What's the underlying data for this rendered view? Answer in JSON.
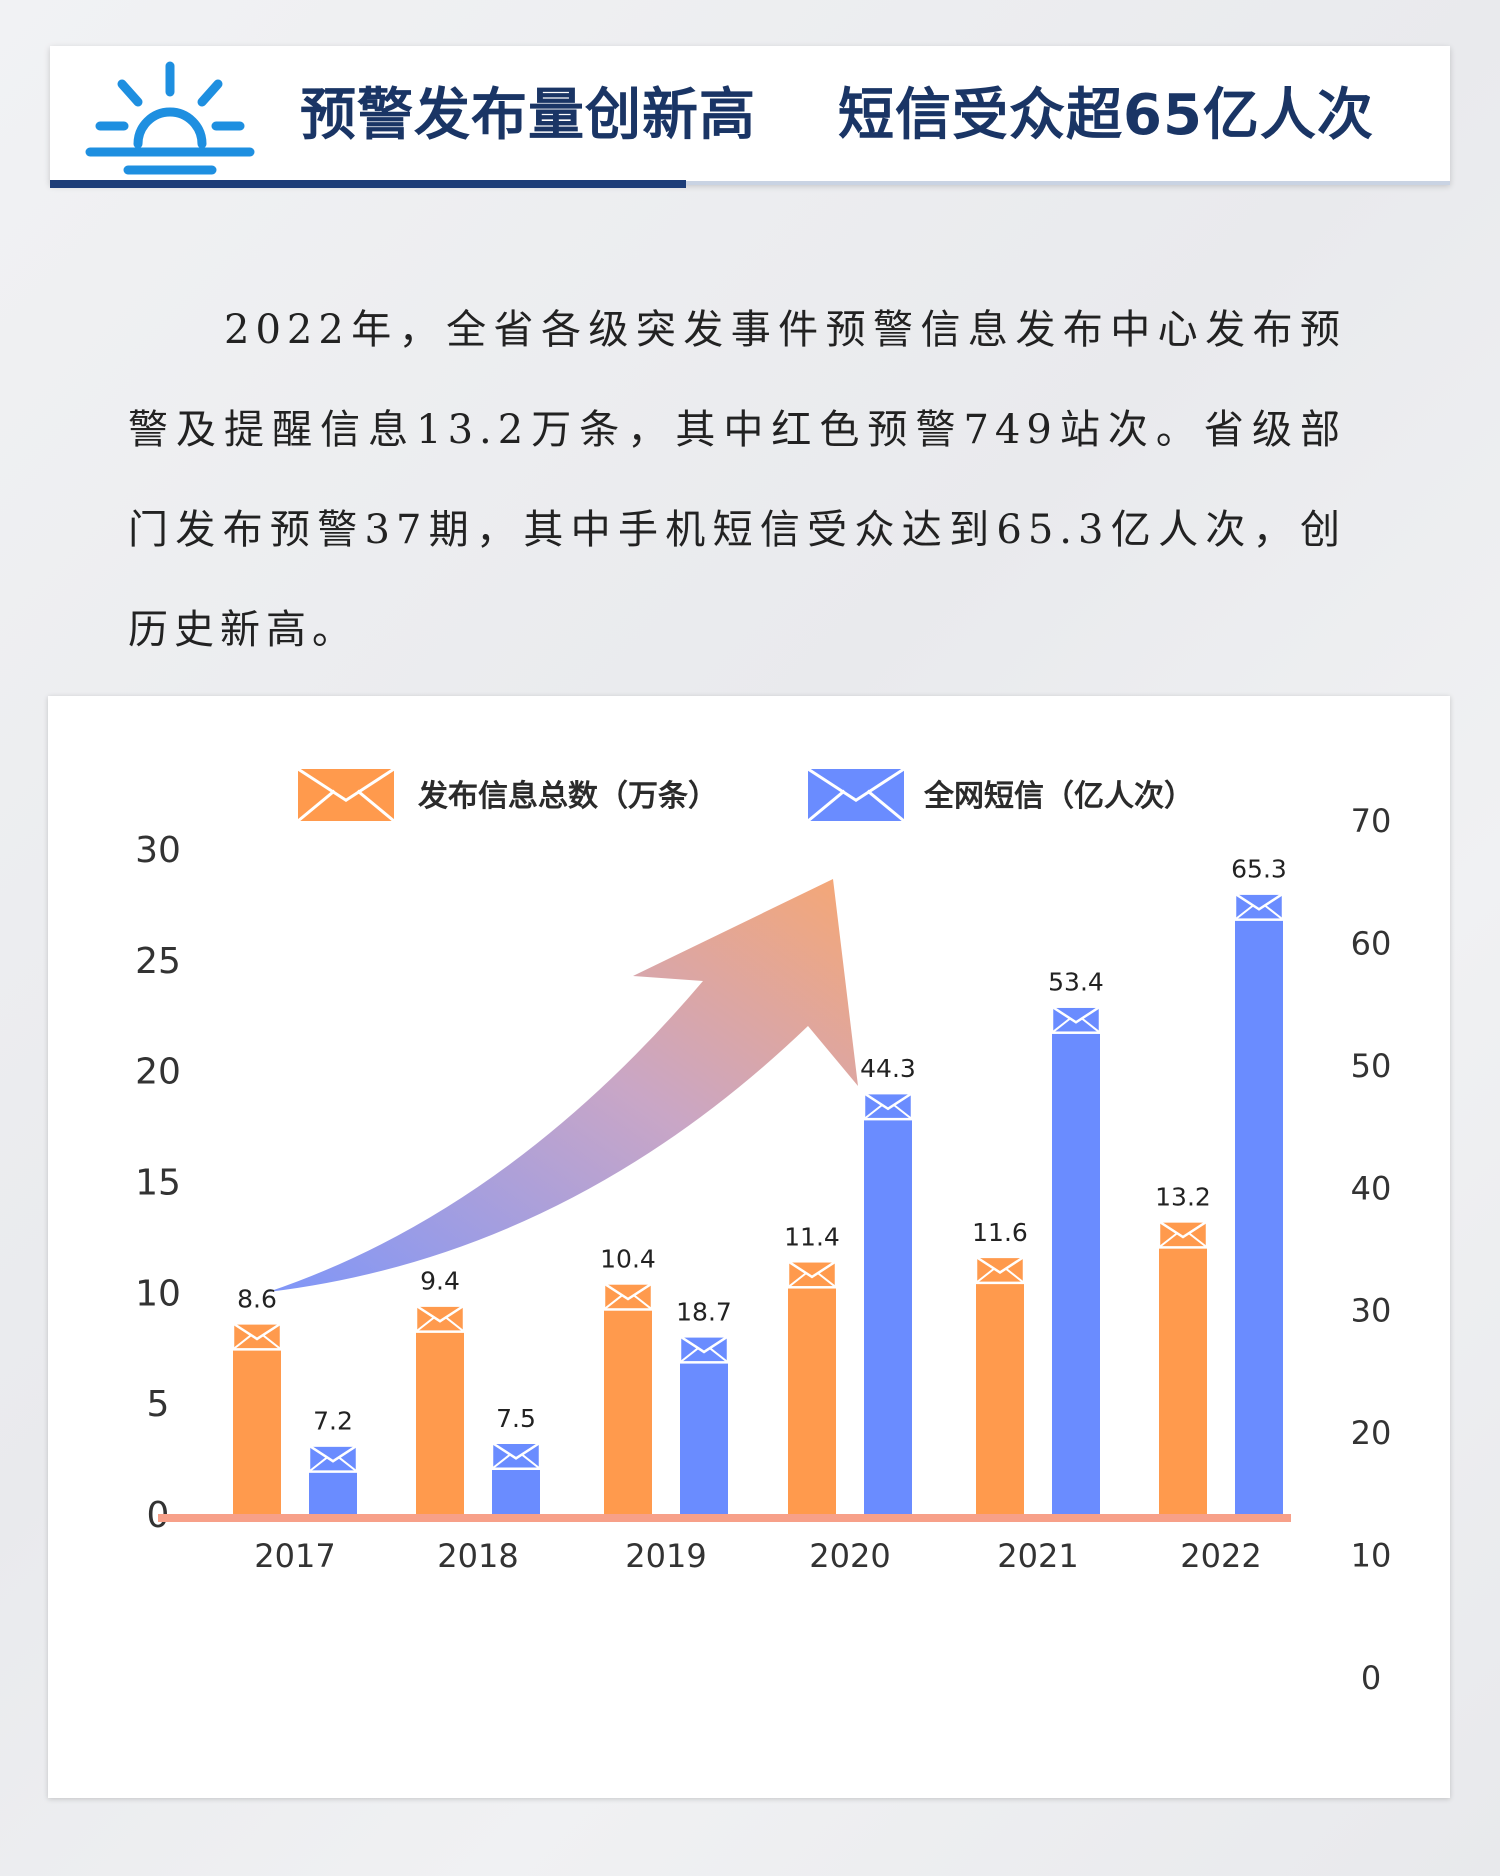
{
  "header": {
    "title": "预警发布量创新高    短信受众超65亿人次",
    "icon": "sunrise-icon",
    "icon_color": "#1e8fe0",
    "underline_color": "#1d3d78"
  },
  "body": {
    "paragraph": "2022年，全省各级突发事件预警信息发布中心发布预警及提醒信息13.2万条，其中红色预警749站次。省级部门发布预警37期，其中手机短信受众达到65.3亿人次，创历史新高。"
  },
  "chart_data": {
    "type": "bar",
    "categories": [
      "2017",
      "2018",
      "2019",
      "2020",
      "2021",
      "2022"
    ],
    "series": [
      {
        "name": "发布信息总数（万条）",
        "values": [
          8.6,
          9.4,
          10.4,
          11.4,
          11.6,
          13.2
        ],
        "labels": [
          "8.6",
          "9.4",
          "10.4",
          "11.4",
          "11.6",
          "13.2"
        ],
        "axis": "left",
        "color": "#ff9a4d"
      },
      {
        "name": "全网短信（亿人次）",
        "values": [
          7.2,
          7.5,
          18.7,
          44.3,
          53.4,
          65.3
        ],
        "labels": [
          "7.2",
          "7.5",
          "18.7",
          "44.3",
          "53.4",
          "65.3"
        ],
        "axis": "right",
        "color": "#6a8cff"
      }
    ],
    "y_left": {
      "range": [
        0,
        30
      ],
      "ticks": [
        "0",
        "5",
        "10",
        "15",
        "20",
        "25",
        "30"
      ]
    },
    "y_right": {
      "range": [
        0,
        70
      ],
      "ticks": [
        "0",
        "10",
        "20",
        "30",
        "40",
        "50",
        "60",
        "70"
      ]
    },
    "legend": "top",
    "grid": false,
    "trend_arrow": "upward",
    "baseline_color": "#f7a089"
  }
}
